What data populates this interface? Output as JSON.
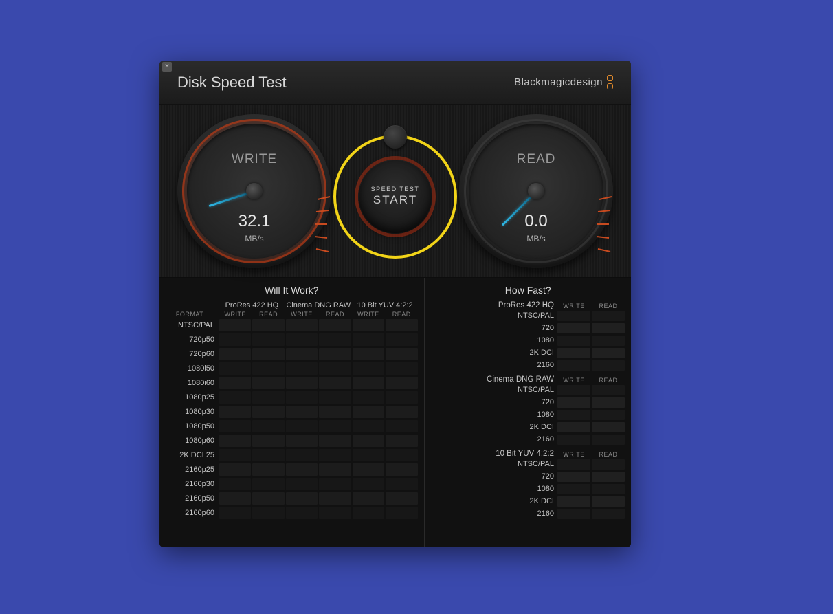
{
  "app": {
    "title": "Disk Speed Test",
    "brand": "Blackmagicdesign"
  },
  "colors": {
    "page_bg": "#3a49ad",
    "window_bg": "#1a1a1a",
    "accent_orange": "#e08a2c",
    "needle": "#2fb8e6",
    "highlight_ring": "#f2d418",
    "tick": "#c74a1f",
    "text_primary": "#d8d8d8",
    "text_muted": "#888888"
  },
  "gauges": {
    "write": {
      "label": "WRITE",
      "value": "32.1",
      "unit": "MB/s",
      "needle_angle_deg": -108
    },
    "read": {
      "label": "READ",
      "value": "0.0",
      "unit": "MB/s",
      "needle_angle_deg": -135
    }
  },
  "start": {
    "small": "SPEED TEST",
    "big": "START"
  },
  "will_it_work": {
    "title": "Will It Work?",
    "format_header": "FORMAT",
    "codecs": [
      "ProRes 422 HQ",
      "Cinema DNG RAW",
      "10 Bit YUV 4:2:2"
    ],
    "sub_write": "WRITE",
    "sub_read": "READ",
    "formats": [
      "NTSC/PAL",
      "720p50",
      "720p60",
      "1080i50",
      "1080i60",
      "1080p25",
      "1080p30",
      "1080p50",
      "1080p60",
      "2K DCI 25",
      "2160p25",
      "2160p30",
      "2160p50",
      "2160p60"
    ]
  },
  "how_fast": {
    "title": "How Fast?",
    "col_write": "WRITE",
    "col_read": "READ",
    "groups": [
      {
        "codec": "ProRes 422 HQ",
        "formats": [
          "NTSC/PAL",
          "720",
          "1080",
          "2K DCI",
          "2160"
        ]
      },
      {
        "codec": "Cinema DNG RAW",
        "formats": [
          "NTSC/PAL",
          "720",
          "1080",
          "2K DCI",
          "2160"
        ]
      },
      {
        "codec": "10 Bit YUV 4:2:2",
        "formats": [
          "NTSC/PAL",
          "720",
          "1080",
          "2K DCI",
          "2160"
        ]
      }
    ]
  }
}
